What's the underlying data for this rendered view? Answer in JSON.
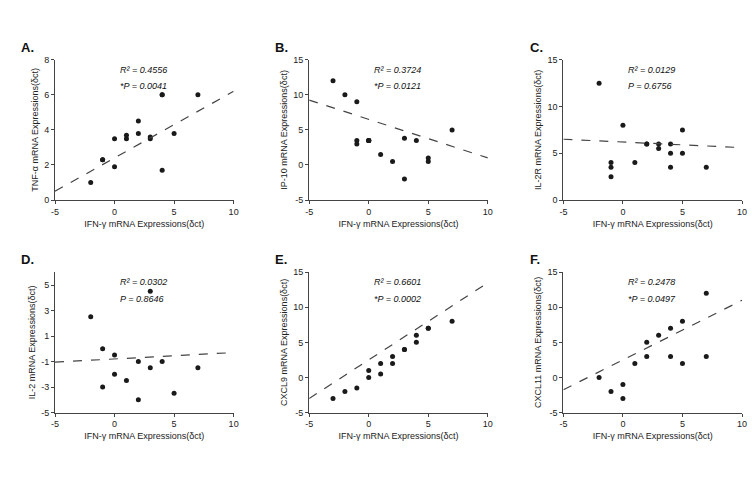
{
  "chart_data": [
    {
      "type": "scatter",
      "title": "A.",
      "xlabel": "IFN-γ mRNA Expressions(δct)",
      "ylabel": "TNF-α mRNA Expressions(δct)",
      "annotations": [
        "R² = 0.4556",
        "*P = 0.0041"
      ],
      "xlim": [
        -5,
        10
      ],
      "ylim": [
        0,
        8
      ],
      "xticks": [
        -5,
        0,
        5,
        10
      ],
      "yticks": [
        0,
        2,
        4,
        6,
        8
      ],
      "grid": false,
      "series": [
        {
          "type": "scatter",
          "marker": "circle",
          "color": "#1a1a1a",
          "x": [
            -2,
            -1,
            -1,
            0,
            0,
            1,
            1,
            2,
            2,
            3,
            3,
            4,
            4,
            4,
            5,
            7
          ],
          "values": [
            1.0,
            2.3,
            2.3,
            3.5,
            1.9,
            3.7,
            3.5,
            3.8,
            4.5,
            3.5,
            3.6,
            6.0,
            6.0,
            1.7,
            3.8,
            6.0
          ]
        },
        {
          "type": "line",
          "line_style": "dashed",
          "color": "#444444",
          "x": [
            -5,
            10
          ],
          "values": [
            0.5,
            6.2
          ]
        }
      ]
    },
    {
      "type": "scatter",
      "title": "B.",
      "xlabel": "IFN-γ mRNA Expressions(δct)",
      "ylabel": "IP-10 mRNA Expressions(δct)",
      "annotations": [
        "R² = 0.3724",
        "*P = 0.0121"
      ],
      "xlim": [
        -5,
        10
      ],
      "ylim": [
        -5,
        15
      ],
      "xticks": [
        -5,
        0,
        5,
        10
      ],
      "yticks": [
        -5,
        0,
        5,
        10,
        15
      ],
      "grid": false,
      "series": [
        {
          "type": "scatter",
          "marker": "circle",
          "color": "#1a1a1a",
          "x": [
            -3,
            -2,
            -1,
            -1,
            -1,
            0,
            0,
            0,
            0,
            1,
            2,
            3,
            3,
            4,
            5,
            5,
            7
          ],
          "values": [
            12,
            10,
            9,
            3.5,
            3.0,
            3.5,
            3.5,
            3.5,
            3.5,
            1.5,
            0.5,
            3.8,
            -2,
            3.5,
            1,
            0.5,
            5
          ]
        },
        {
          "type": "line",
          "line_style": "dashed",
          "color": "#444444",
          "x": [
            -5,
            10
          ],
          "values": [
            9.25,
            1.0
          ]
        }
      ]
    },
    {
      "type": "scatter",
      "title": "C.",
      "xlabel": "IFN-γ mRNA Expressions(δct)",
      "ylabel": "IL-2R mRNA Expressions(δct)",
      "annotations": [
        "R² = 0.0129",
        "P = 0.6756"
      ],
      "xlim": [
        -5,
        10
      ],
      "ylim": [
        0,
        15
      ],
      "xticks": [
        -5,
        0,
        5,
        10
      ],
      "yticks": [
        0,
        5,
        10,
        15
      ],
      "grid": false,
      "series": [
        {
          "type": "scatter",
          "marker": "circle",
          "color": "#1a1a1a",
          "x": [
            -2,
            -1,
            -1,
            -1,
            0,
            1,
            2,
            2,
            3,
            3,
            4,
            4,
            4,
            5,
            5,
            7
          ],
          "values": [
            12.5,
            3.5,
            4.0,
            2.5,
            8.0,
            4.0,
            6.0,
            6.0,
            5.5,
            6.0,
            5.0,
            6.0,
            3.5,
            5.0,
            7.5,
            3.5
          ]
        },
        {
          "type": "line",
          "line_style": "dashed",
          "color": "#444444",
          "x": [
            -5,
            10
          ],
          "values": [
            6.5,
            5.6
          ]
        }
      ]
    },
    {
      "type": "scatter",
      "title": "D.",
      "xlabel": "IFN-γ mRNA Expressions(δct)",
      "ylabel": "IL-2 mRNA Expressions(δct)",
      "annotations": [
        "R² = 0.0302",
        "P = 0.8646"
      ],
      "xlim": [
        -5,
        10
      ],
      "ylim": [
        -5,
        6
      ],
      "xticks": [
        -5,
        0,
        5,
        10
      ],
      "yticks": [
        -5,
        -3,
        -1,
        1,
        3,
        5
      ],
      "grid": false,
      "series": [
        {
          "type": "scatter",
          "marker": "circle",
          "color": "#1a1a1a",
          "x": [
            -2,
            -1,
            -1,
            0,
            0,
            1,
            2,
            2,
            3,
            3,
            4,
            5,
            7
          ],
          "values": [
            2.5,
            0,
            -3,
            -0.5,
            -2,
            -2.5,
            -1,
            -4,
            -1.5,
            4.5,
            -1,
            -3.5,
            -1.5
          ]
        },
        {
          "type": "line",
          "line_style": "dashed",
          "color": "#444444",
          "x": [
            -5,
            10
          ],
          "values": [
            -1.05,
            -0.3
          ]
        }
      ]
    },
    {
      "type": "scatter",
      "title": "E.",
      "xlabel": "IFN-γ mRNA Expressions(δct)",
      "ylabel": "CXCL9 mRNA Expressions(δct)",
      "annotations": [
        "R² = 0.6601",
        "*P = 0.0002"
      ],
      "xlim": [
        -5,
        10
      ],
      "ylim": [
        -5,
        15
      ],
      "xticks": [
        -5,
        0,
        5,
        10
      ],
      "yticks": [
        -5,
        0,
        5,
        10,
        15
      ],
      "grid": false,
      "series": [
        {
          "type": "scatter",
          "marker": "circle",
          "color": "#1a1a1a",
          "x": [
            -3,
            -2,
            -1,
            0,
            0,
            1,
            1,
            2,
            2,
            3,
            3,
            4,
            4,
            5,
            5,
            7
          ],
          "values": [
            -3,
            -2,
            -1.5,
            0,
            1,
            0.5,
            2,
            3,
            2,
            4,
            4,
            5,
            6,
            7,
            7,
            8
          ]
        },
        {
          "type": "line",
          "line_style": "dashed",
          "color": "#444444",
          "x": [
            -5,
            10
          ],
          "values": [
            -3,
            13.5
          ]
        }
      ]
    },
    {
      "type": "scatter",
      "title": "F.",
      "xlabel": "IFN-γ mRNA Expressions(δct)",
      "ylabel": "CXCL11 mRNA Expressions(δct)",
      "annotations": [
        "R² = 0.2478",
        "*P = 0.0497"
      ],
      "xlim": [
        -5,
        10
      ],
      "ylim": [
        -5,
        15
      ],
      "xticks": [
        -5,
        0,
        5,
        10
      ],
      "yticks": [
        -5,
        0,
        5,
        10,
        15
      ],
      "grid": false,
      "series": [
        {
          "type": "scatter",
          "marker": "circle",
          "color": "#1a1a1a",
          "x": [
            -2,
            -1,
            0,
            0,
            1,
            2,
            2,
            3,
            4,
            4,
            5,
            5,
            7,
            7
          ],
          "values": [
            0,
            -2,
            -1,
            -3,
            2,
            3,
            5,
            6,
            7,
            3,
            8,
            2,
            12,
            3
          ]
        },
        {
          "type": "line",
          "line_style": "dashed",
          "color": "#444444",
          "x": [
            -5,
            10
          ],
          "values": [
            -1.75,
            11
          ]
        }
      ]
    }
  ]
}
